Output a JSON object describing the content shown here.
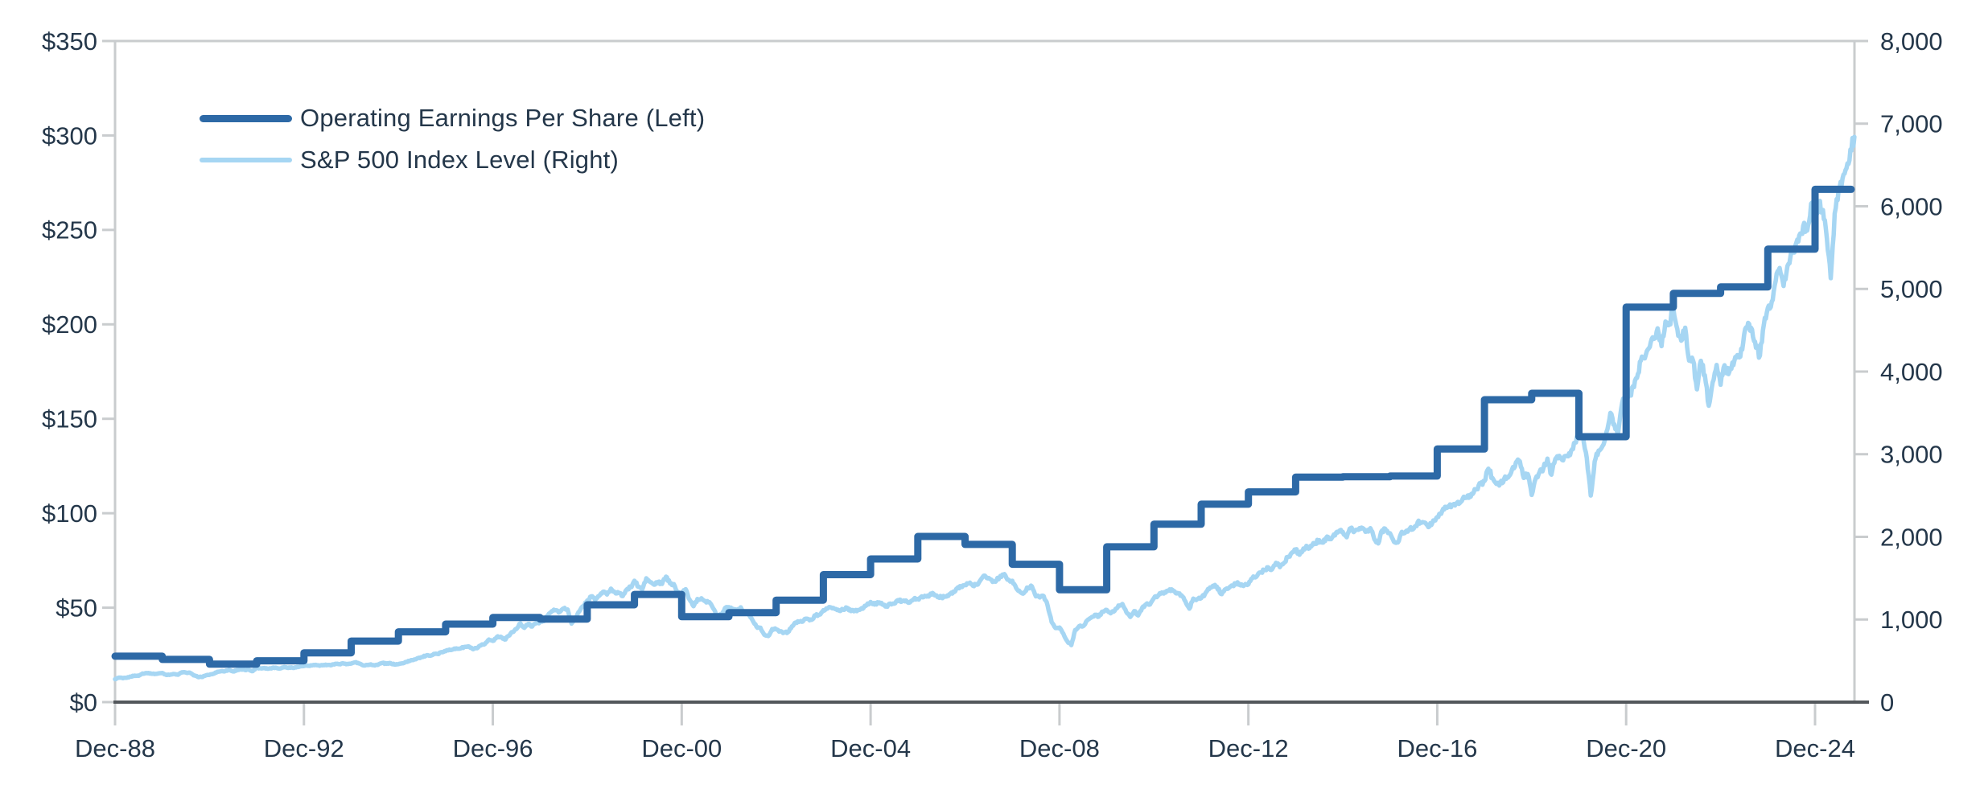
{
  "colors": {
    "eps_line": "#2D69A6",
    "index_line": "#A6D6F3",
    "text": "#24374A",
    "axis_light": "#C9CCCE",
    "axis_dark": "#53575B",
    "background": "#FFFFFF"
  },
  "legend": {
    "eps_label": "Operating Earnings Per Share (Left)",
    "index_label": "S&P 500 Index Level (Right)"
  },
  "chart_data": {
    "type": "line",
    "title": "",
    "x_axis": {
      "start": "Dec-1988",
      "end": "Oct-2025",
      "tick_labels": [
        "Dec-88",
        "Dec-92",
        "Dec-96",
        "Dec-00",
        "Dec-04",
        "Dec-08",
        "Dec-12",
        "Dec-16",
        "Dec-20",
        "Dec-24"
      ],
      "tick_year_offsets": [
        0,
        4,
        8,
        12,
        16,
        20,
        24,
        28,
        32,
        36
      ]
    },
    "left_axis": {
      "title": "Operating Earnings Per Share",
      "range": [
        0,
        350
      ],
      "tick_values": [
        0,
        50,
        100,
        150,
        200,
        250,
        300,
        350
      ],
      "tick_labels": [
        "$0",
        "$50",
        "$100",
        "$150",
        "$200",
        "$250",
        "$300",
        "$350"
      ]
    },
    "right_axis": {
      "title": "S&P 500 Index Level",
      "range": [
        0,
        8000
      ],
      "tick_values": [
        0,
        1000,
        2000,
        3000,
        4000,
        5000,
        6000,
        7000,
        8000
      ],
      "tick_labels": [
        "0",
        "1,000",
        "2,000",
        "3,000",
        "4,000",
        "5,000",
        "6,000",
        "7,000",
        "8,000"
      ]
    },
    "series": [
      {
        "name": "Operating Earnings Per Share (Left)",
        "axis": "left",
        "style": "step",
        "color": "#2D69A6",
        "first_year": 1989,
        "annual_values": [
          24.3,
          22.6,
          20.1,
          21.9,
          26.1,
          32.3,
          37.2,
          41.3,
          44.8,
          44.0,
          51.5,
          57.0,
          45.2,
          47.4,
          54.0,
          67.5,
          75.8,
          87.7,
          83.5,
          73.0,
          59.5,
          82.2,
          94.2,
          104.8,
          111.3,
          119.1,
          119.3,
          119.7,
          134.0,
          160.1,
          163.5,
          140.5,
          209.1,
          216.4,
          219.8,
          239.8,
          271.5
        ]
      },
      {
        "name": "S&P 500 Index Level (Right)",
        "axis": "right",
        "style": "line",
        "color": "#A6D6F3",
        "first_month": "Dec-1988",
        "monthly_values": [
          277,
          297,
          289,
          295,
          309,
          321,
          318,
          346,
          351,
          349,
          340,
          346,
          353,
          329,
          332,
          340,
          331,
          361,
          358,
          356,
          323,
          306,
          304,
          322,
          330,
          344,
          367,
          375,
          375,
          390,
          371,
          388,
          395,
          388,
          392,
          375,
          417,
          409,
          413,
          404,
          415,
          415,
          408,
          424,
          414,
          418,
          419,
          431,
          436,
          439,
          444,
          452,
          440,
          450,
          451,
          448,
          464,
          459,
          468,
          462,
          466,
          482,
          467,
          446,
          451,
          457,
          444,
          458,
          475,
          463,
          472,
          454,
          459,
          470,
          487,
          501,
          515,
          533,
          545,
          562,
          562,
          584,
          582,
          605,
          616,
          636,
          640,
          646,
          654,
          669,
          671,
          640,
          652,
          687,
          705,
          757,
          741,
          786,
          791,
          757,
          801,
          848,
          885,
          954,
          899,
          947,
          915,
          955,
          970,
          980,
          1049,
          1102,
          1112,
          1091,
          1134,
          1121,
          950,
          1017,
          1099,
          1164,
          1229,
          1280,
          1238,
          1286,
          1335,
          1302,
          1373,
          1329,
          1320,
          1283,
          1363,
          1389,
          1469,
          1394,
          1366,
          1499,
          1452,
          1421,
          1455,
          1431,
          1518,
          1437,
          1429,
          1315,
          1320,
          1366,
          1240,
          1160,
          1249,
          1256,
          1224,
          1211,
          1134,
          1041,
          1060,
          1139,
          1148,
          1130,
          1107,
          1147,
          1077,
          1067,
          990,
          912,
          900,
          815,
          800,
          885,
          880,
          856,
          841,
          848,
          917,
          964,
          975,
          990,
          1008,
          996,
          1051,
          1058,
          1112,
          1131,
          1145,
          1126,
          1107,
          1121,
          1141,
          1102,
          1104,
          1115,
          1130,
          1174,
          1212,
          1181,
          1204,
          1181,
          1157,
          1192,
          1191,
          1234,
          1220,
          1229,
          1207,
          1249,
          1248,
          1280,
          1281,
          1295,
          1311,
          1270,
          1270,
          1277,
          1304,
          1336,
          1378,
          1401,
          1418,
          1438,
          1407,
          1421,
          1482,
          1531,
          1503,
          1455,
          1474,
          1527,
          1549,
          1481,
          1468,
          1379,
          1331,
          1323,
          1386,
          1400,
          1280,
          1267,
          1283,
          1166,
          969,
          896,
          903,
          826,
          735,
          690,
          873,
          919,
          919,
          987,
          1021,
          1057,
          1036,
          1096,
          1115,
          1074,
          1104,
          1169,
          1187,
          1089,
          1031,
          1102,
          1049,
          1141,
          1183,
          1181,
          1258,
          1286,
          1327,
          1326,
          1364,
          1345,
          1321,
          1292,
          1219,
          1131,
          1253,
          1247,
          1258,
          1312,
          1366,
          1408,
          1398,
          1310,
          1362,
          1379,
          1407,
          1441,
          1412,
          1416,
          1426,
          1498,
          1515,
          1569,
          1598,
          1631,
          1606,
          1686,
          1633,
          1682,
          1757,
          1806,
          1848,
          1783,
          1859,
          1872,
          1884,
          1924,
          1960,
          1931,
          2003,
          1972,
          2018,
          2068,
          2059,
          1995,
          2105,
          2068,
          2086,
          2107,
          2063,
          2104,
          1972,
          1920,
          2079,
          2080,
          2044,
          1940,
          1932,
          2060,
          2065,
          2097,
          2099,
          2174,
          2171,
          2168,
          2126,
          2199,
          2239,
          2279,
          2364,
          2363,
          2384,
          2412,
          2423,
          2470,
          2472,
          2519,
          2575,
          2648,
          2674,
          2824,
          2714,
          2641,
          2648,
          2705,
          2718,
          2816,
          2902,
          2914,
          2712,
          2760,
          2507,
          2704,
          2784,
          2834,
          2946,
          2752,
          2942,
          2980,
          2926,
          2977,
          3038,
          3141,
          3231,
          3226,
          2954,
          2500,
          2912,
          3044,
          3100,
          3271,
          3500,
          3363,
          3270,
          3622,
          3756,
          3714,
          3811,
          3973,
          4181,
          4204,
          4298,
          4395,
          4523,
          4308,
          4605,
          4567,
          4766,
          4516,
          4374,
          4530,
          4132,
          4132,
          3785,
          4130,
          3955,
          3586,
          3872,
          4080,
          3840,
          4077,
          3970,
          4109,
          4169,
          4180,
          4450,
          4589,
          4508,
          4288,
          4194,
          4568,
          4770,
          4846,
          5096,
          5254,
          5036,
          5278,
          5460,
          5522,
          5648,
          5762,
          5705,
          6032,
          5882,
          6041,
          5955,
          5612,
          5130,
          5912,
          6205,
          6339,
          6460,
          6688,
          6840
        ]
      }
    ],
    "layout_hints": {
      "grid": "off",
      "legend_position": "top-left-inside",
      "left_tick_prefix": "$",
      "right_tick_thousands_separator": ","
    }
  }
}
